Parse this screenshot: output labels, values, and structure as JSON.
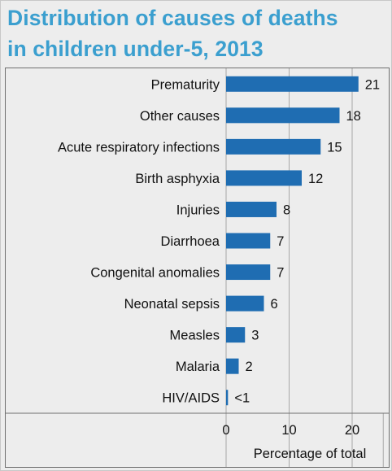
{
  "chart_data": {
    "type": "bar",
    "orientation": "horizontal",
    "title_lines": [
      "Distribution of causes of deaths",
      "in children under-5, 2013"
    ],
    "categories": [
      "Prematurity",
      "Other causes",
      "Acute respiratory infections",
      "Birth asphyxia",
      "Injuries",
      "Diarrhoea",
      "Congenital anomalies",
      "Neonatal sepsis",
      "Measles",
      "Malaria",
      "HIV/AIDS"
    ],
    "values": [
      21,
      18,
      15,
      12,
      8,
      7,
      7,
      6,
      3,
      2,
      0.3
    ],
    "value_labels": [
      "21",
      "18",
      "15",
      "12",
      "8",
      "7",
      "7",
      "6",
      "3",
      "2",
      "<1"
    ],
    "xlabel": "Percentage of total",
    "xlim": [
      0,
      25
    ],
    "xticks": [
      0,
      10,
      20
    ],
    "grid": true,
    "bar_color": "#1f6db2",
    "title_color": "#3b9fcf"
  }
}
